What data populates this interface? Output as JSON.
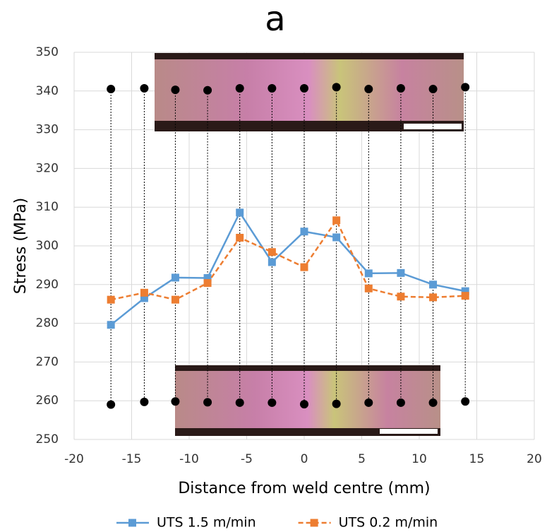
{
  "chart_data": {
    "type": "line",
    "title": "a",
    "x_label": "Distance from weld centre (mm)",
    "y_label": "Stress (MPa)",
    "x": [
      -16.8,
      -13.9,
      -11.2,
      -8.4,
      -5.6,
      -2.8,
      0,
      2.8,
      5.6,
      8.4,
      11.2,
      14
    ],
    "series": [
      {
        "name": "UTS 1.5 m/min",
        "color": "#5b9bd5",
        "dash": false,
        "line": true,
        "values": [
          279.6,
          286.5,
          291.8,
          291.7,
          308.6,
          295.8,
          303.7,
          302.2,
          292.9,
          293.0,
          290.0,
          288.3
        ]
      },
      {
        "name": "UTS 0.2 m/min",
        "color": "#ed7d31",
        "dash": true,
        "line": true,
        "values": [
          286.1,
          287.9,
          286.1,
          290.4,
          302.1,
          298.4,
          294.5,
          306.6,
          289.0,
          286.9,
          286.7,
          287.1
        ]
      },
      {
        "color": "#000000",
        "line": false,
        "values": [
          340.5,
          340.7,
          340.3,
          340.2,
          340.7,
          340.7,
          340.7,
          341.0,
          340.5,
          340.7,
          340.5,
          341.0
        ]
      },
      {
        "color": "#000000",
        "line": false,
        "values": [
          259.0,
          259.7,
          259.8,
          259.6,
          259.5,
          259.5,
          259.1,
          259.2,
          259.5,
          259.5,
          259.5,
          259.8
        ]
      }
    ],
    "xlim": [
      -20,
      20
    ],
    "xticks": [
      -20,
      -15,
      -10,
      -5,
      0,
      5,
      10,
      15,
      20
    ],
    "ylim": [
      250,
      350
    ],
    "yticks": [
      250,
      260,
      270,
      280,
      290,
      300,
      310,
      320,
      330,
      340,
      350
    ],
    "grid": true,
    "legend": "bottom"
  }
}
